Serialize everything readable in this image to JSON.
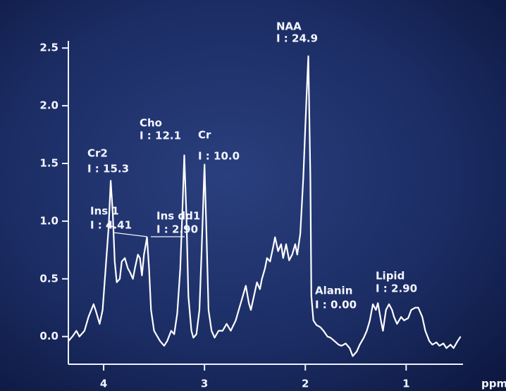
{
  "chart_data": {
    "type": "line",
    "x_label": "ppm",
    "x": [
      4.35,
      4.31,
      4.27,
      4.24,
      4.19,
      4.15,
      4.1,
      4.08,
      4.04,
      4.01,
      3.98,
      3.95,
      3.93,
      3.91,
      3.89,
      3.87,
      3.84,
      3.82,
      3.79,
      3.76,
      3.74,
      3.71,
      3.69,
      3.66,
      3.64,
      3.62,
      3.6,
      3.57,
      3.55,
      3.53,
      3.5,
      3.46,
      3.44,
      3.4,
      3.37,
      3.33,
      3.3,
      3.27,
      3.24,
      3.22,
      3.2,
      3.18,
      3.16,
      3.13,
      3.11,
      3.08,
      3.05,
      3.03,
      3.0,
      2.98,
      2.96,
      2.93,
      2.9,
      2.86,
      2.82,
      2.78,
      2.74,
      2.69,
      2.66,
      2.62,
      2.59,
      2.56,
      2.54,
      2.51,
      2.48,
      2.45,
      2.43,
      2.4,
      2.38,
      2.35,
      2.32,
      2.3,
      2.27,
      2.24,
      2.22,
      2.19,
      2.16,
      2.13,
      2.1,
      2.08,
      2.05,
      2.02,
      1.99,
      1.97,
      1.95,
      1.94,
      1.92,
      1.89,
      1.85,
      1.82,
      1.78,
      1.75,
      1.71,
      1.67,
      1.64,
      1.6,
      1.56,
      1.53,
      1.49,
      1.46,
      1.42,
      1.39,
      1.36,
      1.33,
      1.3,
      1.28,
      1.25,
      1.23,
      1.2,
      1.17,
      1.14,
      1.12,
      1.09,
      1.05,
      1.02,
      0.98,
      0.95,
      0.91,
      0.88,
      0.84,
      0.81,
      0.77,
      0.74,
      0.7,
      0.67,
      0.63,
      0.6,
      0.56,
      0.53,
      0.49,
      0.46
    ],
    "values": [
      -0.04,
      0.0,
      0.05,
      0.0,
      0.05,
      0.17,
      0.28,
      0.23,
      0.11,
      0.23,
      0.59,
      0.95,
      1.35,
      1.07,
      0.65,
      0.47,
      0.5,
      0.65,
      0.68,
      0.59,
      0.56,
      0.5,
      0.59,
      0.71,
      0.68,
      0.53,
      0.71,
      0.86,
      0.59,
      0.23,
      0.05,
      -0.01,
      -0.04,
      -0.08,
      -0.04,
      0.05,
      0.02,
      0.2,
      0.59,
      1.07,
      1.57,
      1.07,
      0.35,
      0.05,
      -0.01,
      0.02,
      0.23,
      0.71,
      1.49,
      0.89,
      0.23,
      0.05,
      -0.01,
      0.05,
      0.05,
      0.11,
      0.05,
      0.14,
      0.23,
      0.35,
      0.44,
      0.29,
      0.23,
      0.35,
      0.47,
      0.41,
      0.5,
      0.59,
      0.68,
      0.65,
      0.77,
      0.86,
      0.74,
      0.8,
      0.68,
      0.8,
      0.66,
      0.71,
      0.8,
      0.71,
      0.89,
      1.38,
      2.04,
      2.43,
      1.38,
      0.35,
      0.14,
      0.1,
      0.08,
      0.05,
      0.0,
      -0.01,
      -0.04,
      -0.07,
      -0.08,
      -0.06,
      -0.1,
      -0.17,
      -0.13,
      -0.07,
      -0.01,
      0.05,
      0.14,
      0.28,
      0.23,
      0.29,
      0.14,
      0.05,
      0.23,
      0.28,
      0.23,
      0.17,
      0.11,
      0.17,
      0.14,
      0.16,
      0.23,
      0.25,
      0.25,
      0.17,
      0.05,
      -0.04,
      -0.07,
      -0.05,
      -0.08,
      -0.06,
      -0.1,
      -0.07,
      -0.1,
      -0.04,
      0.0
    ],
    "color": "#ffffff",
    "xlim": [
      4.35,
      0.45
    ],
    "ylim": [
      -0.24,
      2.55
    ],
    "xticks": [
      4,
      3,
      2,
      1
    ],
    "yticks": [
      {
        "value": 0,
        "label": "0.0"
      },
      0.5,
      {
        "value": 1,
        "label": "1.0"
      },
      1.5,
      {
        "value": 2,
        "label": "2.0"
      },
      2.5
    ],
    "annotations": [
      {
        "label": "Cr2",
        "text": "I : 15.3"
      },
      {
        "label": "Cho",
        "text": "I : 12.1"
      },
      {
        "label": "Cr",
        "text": "I : 10.0"
      },
      {
        "label": "NAA",
        "text": "I : 24.9"
      },
      {
        "label": "Ins 1",
        "text": "I : 4.41"
      },
      {
        "label": "Ins dd1",
        "text": "I : 2.90"
      },
      {
        "label": "Alanin",
        "text": "I : 0.00"
      },
      {
        "label": "Lipid",
        "text": "I : 2.90"
      }
    ]
  }
}
